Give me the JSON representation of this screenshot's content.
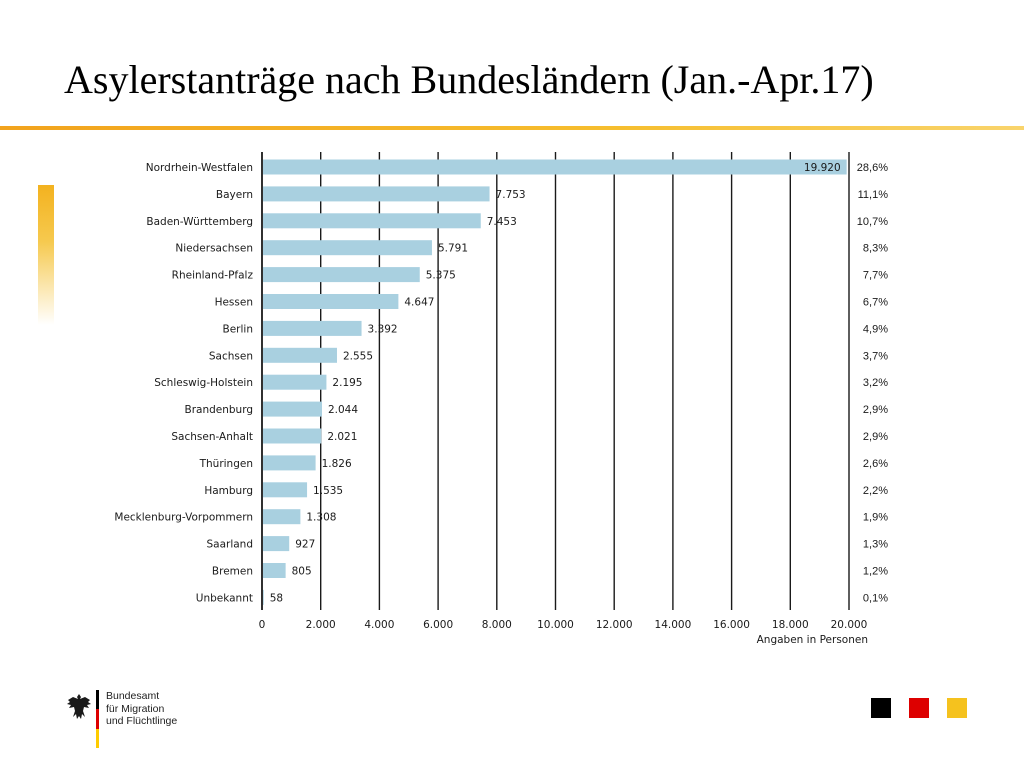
{
  "slide": {
    "title": "Asylerstanträge nach Bundesländern (Jan.-Apr.17)"
  },
  "chart_data": {
    "type": "bar",
    "orientation": "horizontal",
    "categories": [
      "Nordrhein-Westfalen",
      "Bayern",
      "Baden-Württemberg",
      "Niedersachsen",
      "Rheinland-Pfalz",
      "Hessen",
      "Berlin",
      "Sachsen",
      "Schleswig-Holstein",
      "Brandenburg",
      "Sachsen-Anhalt",
      "Thüringen",
      "Hamburg",
      "Mecklenburg-Vorpommern",
      "Saarland",
      "Bremen",
      "Unbekannt"
    ],
    "values": [
      19920,
      7753,
      7453,
      5791,
      5375,
      4647,
      3392,
      2555,
      2195,
      2044,
      2021,
      1826,
      1535,
      1308,
      927,
      805,
      58
    ],
    "value_labels": [
      "19.920",
      "7.753",
      "7.453",
      "5.791",
      "5.375",
      "4.647",
      "3.392",
      "2.555",
      "2.195",
      "2.044",
      "2.021",
      "1.826",
      "1.535",
      "1.308",
      "927",
      "805",
      "58"
    ],
    "percentages": [
      "28,6%",
      "11,1%",
      "10,7%",
      "8,3%",
      "7,7%",
      "6,7%",
      "4,9%",
      "3,7%",
      "3,2%",
      "2,9%",
      "2,9%",
      "2,6%",
      "2,2%",
      "1,9%",
      "1,3%",
      "1,2%",
      "0,1%"
    ],
    "xticks": [
      0,
      2000,
      4000,
      6000,
      8000,
      10000,
      12000,
      14000,
      16000,
      18000,
      20000
    ],
    "xtick_labels": [
      "0",
      "2.000",
      "4.000",
      "6.000",
      "8.000",
      "10.000",
      "12.000",
      "14.000",
      "16.000",
      "18.000",
      "20.000"
    ],
    "xlim": [
      0,
      20000
    ],
    "xlabel": "Angaben in Personen",
    "grid": true,
    "bar_color": "#a9d0e0"
  },
  "logo": {
    "lines": [
      "Bundesamt",
      "für Migration",
      "und Flüchtlinge"
    ],
    "icon": "eagle-icon",
    "flag_colors": [
      "#000000",
      "#dd0000",
      "#ffcc00"
    ]
  },
  "decor": {
    "accent_color": "#f6b21c",
    "square_colors": [
      "#000000",
      "#dd0000",
      "#f5c21e"
    ]
  }
}
